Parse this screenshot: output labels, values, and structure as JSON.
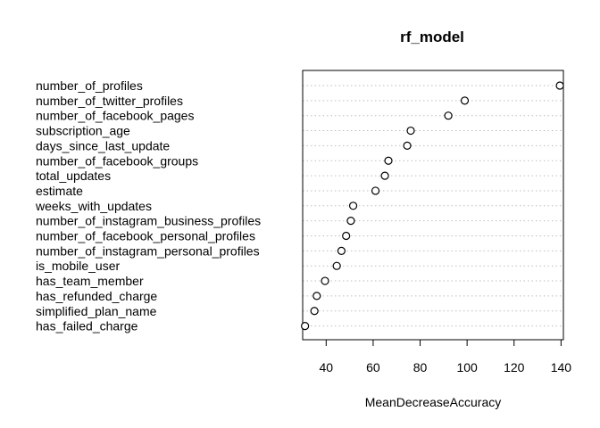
{
  "chart_data": {
    "type": "scatter",
    "subtype": "dotchart",
    "title": "rf_model",
    "xlabel": "MeanDecreaseAccuracy",
    "ylabel": "",
    "xlim": [
      30,
      141
    ],
    "xticks": [
      40,
      60,
      80,
      100,
      120,
      140
    ],
    "grid": "dotted horizontal guide lines",
    "categories": [
      "number_of_profiles",
      "number_of_twitter_profiles",
      "number_of_facebook_pages",
      "subscription_age",
      "days_since_last_update",
      "number_of_facebook_groups",
      "total_updates",
      "estimate",
      "weeks_with_updates",
      "number_of_instagram_business_profiles",
      "number_of_facebook_personal_profiles",
      "number_of_instagram_personal_profiles",
      "is_mobile_user",
      "has_team_member",
      "has_refunded_charge",
      "simplified_plan_name",
      "has_failed_charge"
    ],
    "values": [
      139.5,
      99,
      92,
      76,
      74.5,
      66.5,
      65,
      61,
      51.5,
      50.5,
      48.5,
      46.5,
      44.5,
      39.5,
      36,
      35,
      31
    ]
  },
  "colors": {
    "axis": "#000000",
    "grid": "#bebebe",
    "point_fill": "#ffffff",
    "point_stroke": "#000000"
  }
}
